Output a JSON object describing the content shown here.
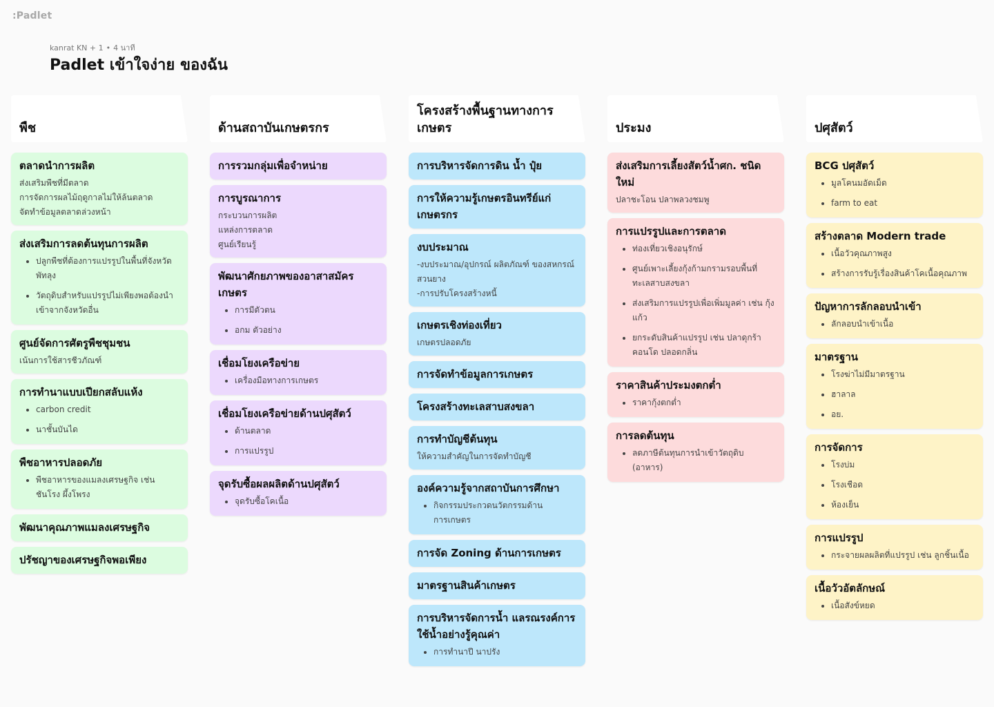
{
  "app": {
    "logo": ":Padlet"
  },
  "header": {
    "author": "kanrat KN + 1",
    "time": "4 นาที",
    "title": "Padlet เข้าใจง่าย ของฉัน"
  },
  "columns": [
    {
      "title": "พืช",
      "cards": [
        {
          "title": "ตลาดนำการผลิต",
          "body": "ส่งเสริมพืชที่มีตลาด\nการจัดการผลไม้ฤดูกาลไม่ให้ล้นตลาด\nจัดทำข้อมูลตลาดล่วงหน้า"
        },
        {
          "title": "ส่งเสริมการลดต้นทุนการผลิต",
          "items": [
            "ปลูกพืชที่ต้องการแปรรูปในพื้นที่จังหวัดพัทลุง",
            "วัตถุดิบสำหรับแปรรูปไม่เพียงพอต้องนำเข้าจากจังหวัดอื่น"
          ]
        },
        {
          "title": "ศูนย์จัดการศัตรูพืชชุมชน",
          "body": "เน้นการใช้สารชีวภัณฑ์"
        },
        {
          "title": "การทำนาแบบเปียกสลับแห้ง",
          "items": [
            "carbon credit",
            "นาชั้นบันได"
          ]
        },
        {
          "title": "พืชอาหารปลอดภัย",
          "items": [
            "พืชอาหารของแมลงเศรษฐกิจ เช่น ชันโรง ผึ้งโพรง"
          ]
        },
        {
          "title": "พัฒนาคุณภาพแมลงเศรษฐกิจ"
        },
        {
          "title": "ปรัชญาของเศรษฐกิจพอเพียง"
        }
      ]
    },
    {
      "title": "ด้านสถาบันเกษตรกร",
      "cards": [
        {
          "title": "การรวมกลุ่มเพื่อจำหน่าย"
        },
        {
          "title": "การบูรณาการ",
          "body": "กระบวนการผลิต\nแหล่งการตลาด\nศูนย์เรียนรู้"
        },
        {
          "title": "พัฒนาศักยภาพของอาสาสมัครเกษตร",
          "items": [
            "การมีตัวตน",
            "อกม ตัวอย่าง"
          ]
        },
        {
          "title": "เชื่อมโยงเครือข่าย",
          "items": [
            "เครื่องมือทางการเกษตร"
          ]
        },
        {
          "title": "เชื่อมโยงเครือข่ายด้านปศุสัตว์",
          "items": [
            "ด้านตลาด",
            "การแปรรูป"
          ]
        },
        {
          "title": "จุดรับซื้อผลผลิตด้านปศุสัตว์",
          "items": [
            "จุดรับซื้อโคเนื้อ"
          ]
        }
      ]
    },
    {
      "title": "โครงสร้างพื้นฐานทางการเกษตร",
      "cards": [
        {
          "title": "การบริหารจัดการดิน น้ำ ปุ๋ย"
        },
        {
          "title": "การให้ความรู้เกษตรอินทรีย์แก่เกษตรกร"
        },
        {
          "title": "งบประมาณ",
          "body": "-งบประมาณ/อุปกรณ์ ผลิตภัณฑ์ ของสหกรณ์สวนยาง\n-การปรับโครงสร้างหนี้"
        },
        {
          "title": "เกษตรเชิงท่องเที่ยว",
          "body": "เกษตรปลอดภัย"
        },
        {
          "title": "การจัดทำข้อมูลการเกษตร"
        },
        {
          "title": "โครงสร้างทะเลสาบสงขลา"
        },
        {
          "title": "การทำบัญชีต้นทุน",
          "body": "ให้ความสำคัญในการจัดทำบัญชี"
        },
        {
          "title": "องค์ความรู้จากสถาบันการศึกษา",
          "items": [
            "กิจกรรมประกวดนวัตกรรมด้านการเกษตร"
          ]
        },
        {
          "title": "การจัด Zoning ด้านการเกษตร"
        },
        {
          "title": "มาตรฐานสินค้าเกษตร"
        },
        {
          "title": "การบริหารจัดการน้ำ แลรณรงค์การใช้น้ำอย่างรู้คุณค่า",
          "items": [
            "การทำนาปี นาปรัง"
          ]
        }
      ]
    },
    {
      "title": "ประมง",
      "cards": [
        {
          "title": "ส่งเสริมการเลี้ยงสัตว์น้ำศก. ชนิดใหม่",
          "body": "ปลาชะโอน ปลาพลวงชมพู"
        },
        {
          "title": "การแปรรูปและการตลาด",
          "items": [
            "ท่องเที่ยวเชิงอนุรักษ์",
            "ศูนย์เพาะเลี้ยงกุ้งก้ามกรามรอบพื้นที่ทะเลสาบสงขลา",
            "ส่งเสริมการแปรรูปเพื่อเพิ่มมูลค่า เช่น กุ้งแก้ว",
            "ยกระดับสินค้าแปรรูป เช่น ปลาดุกร้า คอนโด ปลอดกลิ่น"
          ]
        },
        {
          "title": "ราคาสินค้าประมงตกต่ำ",
          "items": [
            "ราคากุ้งตกต่ำ"
          ]
        },
        {
          "title": "การลดต้นทุน",
          "items": [
            "ลดภาษีต้นทุนการนำเข้าวัตถุดิบ (อาหาร)"
          ]
        }
      ]
    },
    {
      "title": "ปศุสัตว์",
      "cards": [
        {
          "title": "BCG ปศุสัตว์",
          "items": [
            "มูลโคนมอัดเม็ด",
            "farm to eat"
          ]
        },
        {
          "title": "สร้างตลาด Modern trade",
          "items": [
            "เนื้อวัวคุณภาพสูง",
            "สร้างการรับรู้เรื่องสินค้าโคเนื้อคุณภาพ"
          ]
        },
        {
          "title": "ปัญหาการลักลอบนำเข้า",
          "items": [
            "ลักลอบนำเข้าเนื้อ"
          ]
        },
        {
          "title": "มาตรฐาน",
          "items": [
            "โรงฆ่าไม่มีมาตรฐาน",
            "ฮาลาล",
            "อย."
          ]
        },
        {
          "title": "การจัดการ",
          "items": [
            "โรงบ่ม",
            "โรงเชือด",
            "ห้องเย็น"
          ]
        },
        {
          "title": "การแปรรูป",
          "items": [
            "กระจายผลผลิตที่แปรรูป เช่น ลูกชิ้นเนื้อ"
          ]
        },
        {
          "title": "เนื้อวัวอัตลักษณ์",
          "items": [
            "เนื้อสังข์หยด"
          ]
        }
      ]
    }
  ]
}
